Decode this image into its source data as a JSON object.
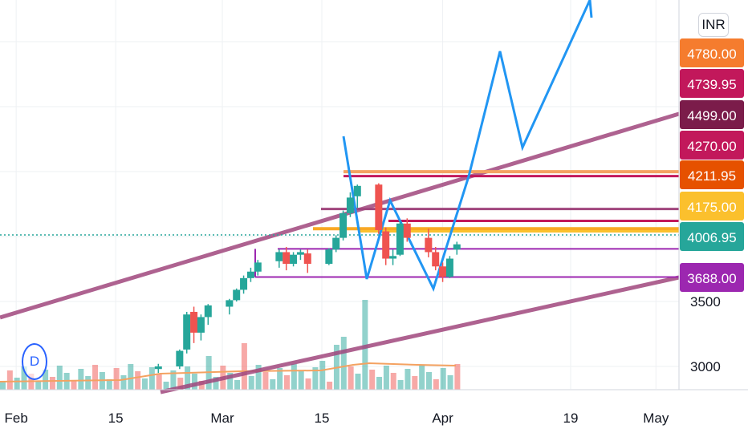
{
  "currency": "INR",
  "interval_marker": "D",
  "chart_data": {
    "type": "candlestick",
    "title": "",
    "price_axis": {
      "ticks": [
        {
          "value": 3000,
          "label": "3000"
        },
        {
          "value": 3500,
          "label": "3500"
        }
      ]
    },
    "time_axis": {
      "ticks": [
        {
          "date": "2020-02-01",
          "label": "Feb"
        },
        {
          "date": "2020-02-15",
          "label": "15"
        },
        {
          "date": "2020-03-01",
          "label": "Mar"
        },
        {
          "date": "2020-03-15",
          "label": "15"
        },
        {
          "date": "2020-04-01",
          "label": "Apr"
        },
        {
          "date": "2020-04-19",
          "label": "19"
        },
        {
          "date": "2020-05-01",
          "label": "May"
        }
      ]
    },
    "price_labels": [
      {
        "value": 4780.0,
        "text": "4780.00",
        "color": "#f57c2e"
      },
      {
        "value": 4739.95,
        "text": "4739.95",
        "color": "#c2185b"
      },
      {
        "value": 4499.0,
        "text": "4499.00",
        "color": "#7b1c4a"
      },
      {
        "value": 4270.0,
        "text": "4270.00",
        "color": "#c2185b"
      },
      {
        "value": 4211.95,
        "text": "4211.95",
        "color": "#e65100"
      },
      {
        "value": 4175.0,
        "text": "4175.00",
        "color": "#fbc02d"
      },
      {
        "value": 4006.95,
        "text": "4006.95",
        "color": "#26a69a"
      },
      {
        "value": 3688.0,
        "text": "3688.00",
        "color": "#9c27b0"
      }
    ],
    "candles": [
      {
        "date": "2020-02-21",
        "o": 2980,
        "h": 3020,
        "l": 2950,
        "c": 3000
      },
      {
        "date": "2020-02-24",
        "o": 3000,
        "h": 3130,
        "l": 2980,
        "c": 3120
      },
      {
        "date": "2020-02-25",
        "o": 3130,
        "h": 3420,
        "l": 3100,
        "c": 3400
      },
      {
        "date": "2020-02-26",
        "o": 3420,
        "h": 3460,
        "l": 3180,
        "c": 3260
      },
      {
        "date": "2020-02-27",
        "o": 3260,
        "h": 3400,
        "l": 3200,
        "c": 3380
      },
      {
        "date": "2020-02-28",
        "o": 3380,
        "h": 3480,
        "l": 3320,
        "c": 3470
      },
      {
        "date": "2020-03-02",
        "o": 3460,
        "h": 3520,
        "l": 3400,
        "c": 3510
      },
      {
        "date": "2020-03-03",
        "o": 3510,
        "h": 3600,
        "l": 3500,
        "c": 3590
      },
      {
        "date": "2020-03-04",
        "o": 3590,
        "h": 3700,
        "l": 3560,
        "c": 3680
      },
      {
        "date": "2020-03-05",
        "o": 3680,
        "h": 3760,
        "l": 3650,
        "c": 3730
      },
      {
        "date": "2020-03-06",
        "o": 3730,
        "h": 3820,
        "l": 3700,
        "c": 3800
      },
      {
        "date": "2020-03-09",
        "o": 3810,
        "h": 3900,
        "l": 3760,
        "c": 3880
      },
      {
        "date": "2020-03-10",
        "o": 3880,
        "h": 3920,
        "l": 3740,
        "c": 3790
      },
      {
        "date": "2020-03-11",
        "o": 3790,
        "h": 3880,
        "l": 3770,
        "c": 3860
      },
      {
        "date": "2020-03-12",
        "o": 3860,
        "h": 3900,
        "l": 3820,
        "c": 3880
      },
      {
        "date": "2020-03-13",
        "o": 3870,
        "h": 3900,
        "l": 3720,
        "c": 3790
      },
      {
        "date": "2020-03-16",
        "o": 3790,
        "h": 3910,
        "l": 3780,
        "c": 3900
      },
      {
        "date": "2020-03-17",
        "o": 3900,
        "h": 4010,
        "l": 3880,
        "c": 3990
      },
      {
        "date": "2020-03-18",
        "o": 3990,
        "h": 4200,
        "l": 3970,
        "c": 4180
      },
      {
        "date": "2020-03-19",
        "o": 4180,
        "h": 4340,
        "l": 4150,
        "c": 4300
      },
      {
        "date": "2020-03-20",
        "o": 4310,
        "h": 4400,
        "l": 4220,
        "c": 4390
      },
      {
        "date": "2020-03-23",
        "o": 4400,
        "h": 4410,
        "l": 4020,
        "c": 4050
      },
      {
        "date": "2020-03-24",
        "o": 4040,
        "h": 4070,
        "l": 3780,
        "c": 3830
      },
      {
        "date": "2020-03-25",
        "o": 3830,
        "h": 3900,
        "l": 3780,
        "c": 3850
      },
      {
        "date": "2020-03-26",
        "o": 3860,
        "h": 4120,
        "l": 3850,
        "c": 4100
      },
      {
        "date": "2020-03-27",
        "o": 4100,
        "h": 4140,
        "l": 3960,
        "c": 3990
      },
      {
        "date": "2020-03-30",
        "o": 3990,
        "h": 4060,
        "l": 3840,
        "c": 3880
      },
      {
        "date": "2020-03-31",
        "o": 3880,
        "h": 3920,
        "l": 3740,
        "c": 3770
      },
      {
        "date": "2020-04-01",
        "o": 3770,
        "h": 3800,
        "l": 3650,
        "c": 3690
      },
      {
        "date": "2020-04-02",
        "o": 3690,
        "h": 3850,
        "l": 3680,
        "c": 3830
      },
      {
        "date": "2020-04-03",
        "o": 3900,
        "h": 3960,
        "l": 3860,
        "c": 3940
      }
    ]
  }
}
